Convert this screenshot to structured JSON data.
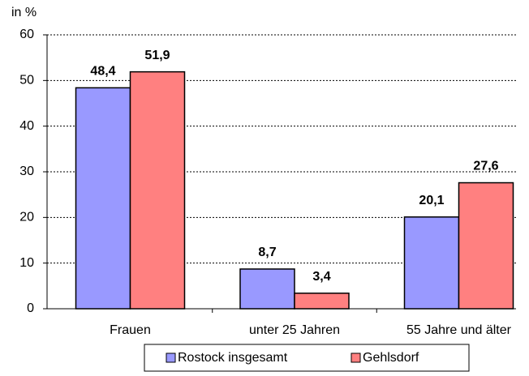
{
  "chart_data": {
    "type": "bar",
    "axis_label": "in %",
    "categories": [
      "Frauen",
      "unter 25 Jahren",
      "55 Jahre und älter"
    ],
    "series": [
      {
        "name": "Rostock insgesamt",
        "color": "#9999ff",
        "values": [
          48.4,
          8.7,
          20.1
        ],
        "value_labels": [
          "48,4",
          "8,7",
          "20,1"
        ]
      },
      {
        "name": "Gehlsdorf",
        "color": "#ff8080",
        "values": [
          51.9,
          3.4,
          27.6
        ],
        "value_labels": [
          "51,9",
          "3,4",
          "27,6"
        ]
      }
    ],
    "ylim": [
      0,
      60
    ],
    "yticks": [
      0,
      10,
      20,
      30,
      40,
      50,
      60
    ],
    "grid": true,
    "legend": "bottom"
  }
}
